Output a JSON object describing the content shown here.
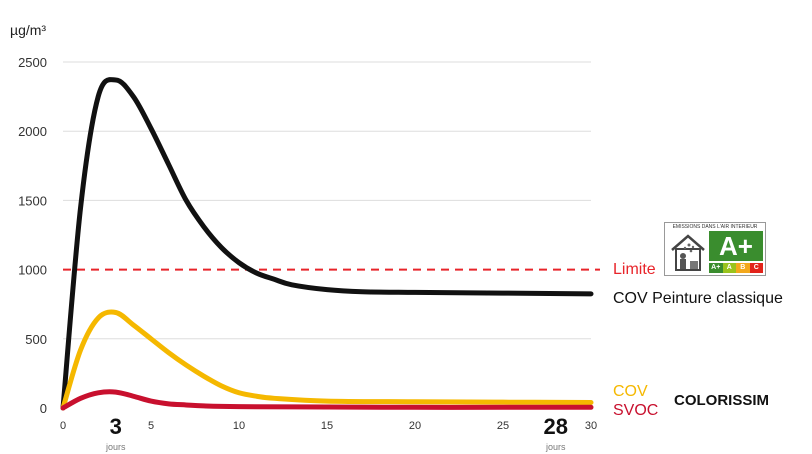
{
  "chart_data": {
    "type": "line",
    "ylabel": "µg/m³",
    "xlim": [
      0,
      30
    ],
    "ylim": [
      0,
      2500
    ],
    "grid": true,
    "y_ticks": [
      "0",
      "500",
      "1000",
      "1500",
      "2000",
      "2500"
    ],
    "x_ticks": [
      {
        "x": 0,
        "label": "0"
      },
      {
        "x": 3,
        "label": "3",
        "sub": "jours",
        "emphasis": true
      },
      {
        "x": 5,
        "label": "5"
      },
      {
        "x": 10,
        "label": "10"
      },
      {
        "x": 15,
        "label": "15"
      },
      {
        "x": 20,
        "label": "20"
      },
      {
        "x": 25,
        "label": "25"
      },
      {
        "x": 28,
        "label": "28",
        "sub": "jours",
        "emphasis": true
      },
      {
        "x": 30,
        "label": "30"
      }
    ],
    "reference_line": {
      "value": 1000,
      "name": "Limite",
      "color": "#e8242a"
    },
    "series": [
      {
        "name": "COV Peinture classique",
        "color": "#111111",
        "x": [
          0,
          1,
          2,
          3,
          4,
          5,
          6,
          7,
          8,
          9,
          10,
          11,
          12,
          13,
          15,
          17,
          20,
          25,
          30
        ],
        "y": [
          0,
          1450,
          2250,
          2370,
          2250,
          2020,
          1760,
          1500,
          1310,
          1160,
          1050,
          975,
          930,
          890,
          855,
          840,
          835,
          830,
          825
        ]
      },
      {
        "name": "COV",
        "color": "#f5b800",
        "x": [
          0,
          1,
          2,
          3,
          4,
          5,
          6,
          7,
          8,
          9,
          10,
          11,
          12,
          15,
          20,
          25,
          30
        ],
        "y": [
          0,
          420,
          650,
          690,
          600,
          500,
          400,
          310,
          230,
          160,
          110,
          85,
          70,
          50,
          45,
          42,
          40
        ]
      },
      {
        "name": "SVOC",
        "color": "#c8102e",
        "x": [
          0,
          1,
          2,
          3,
          4,
          5,
          6,
          7,
          8,
          10,
          15,
          20,
          25,
          30
        ],
        "y": [
          0,
          70,
          110,
          115,
          85,
          50,
          30,
          22,
          15,
          10,
          7,
          5,
          5,
          5
        ]
      }
    ],
    "annotations": {
      "product": "COLORISSIM",
      "label": {
        "title": "ÉMISSIONS DANS L'AIR INTÉRIEUR",
        "score": "A+",
        "classes": [
          "A+",
          "A",
          "B",
          "C"
        ],
        "class_colors": [
          "#3a8d2e",
          "#9ac31c",
          "#f3a81c",
          "#e2231a"
        ]
      }
    }
  }
}
